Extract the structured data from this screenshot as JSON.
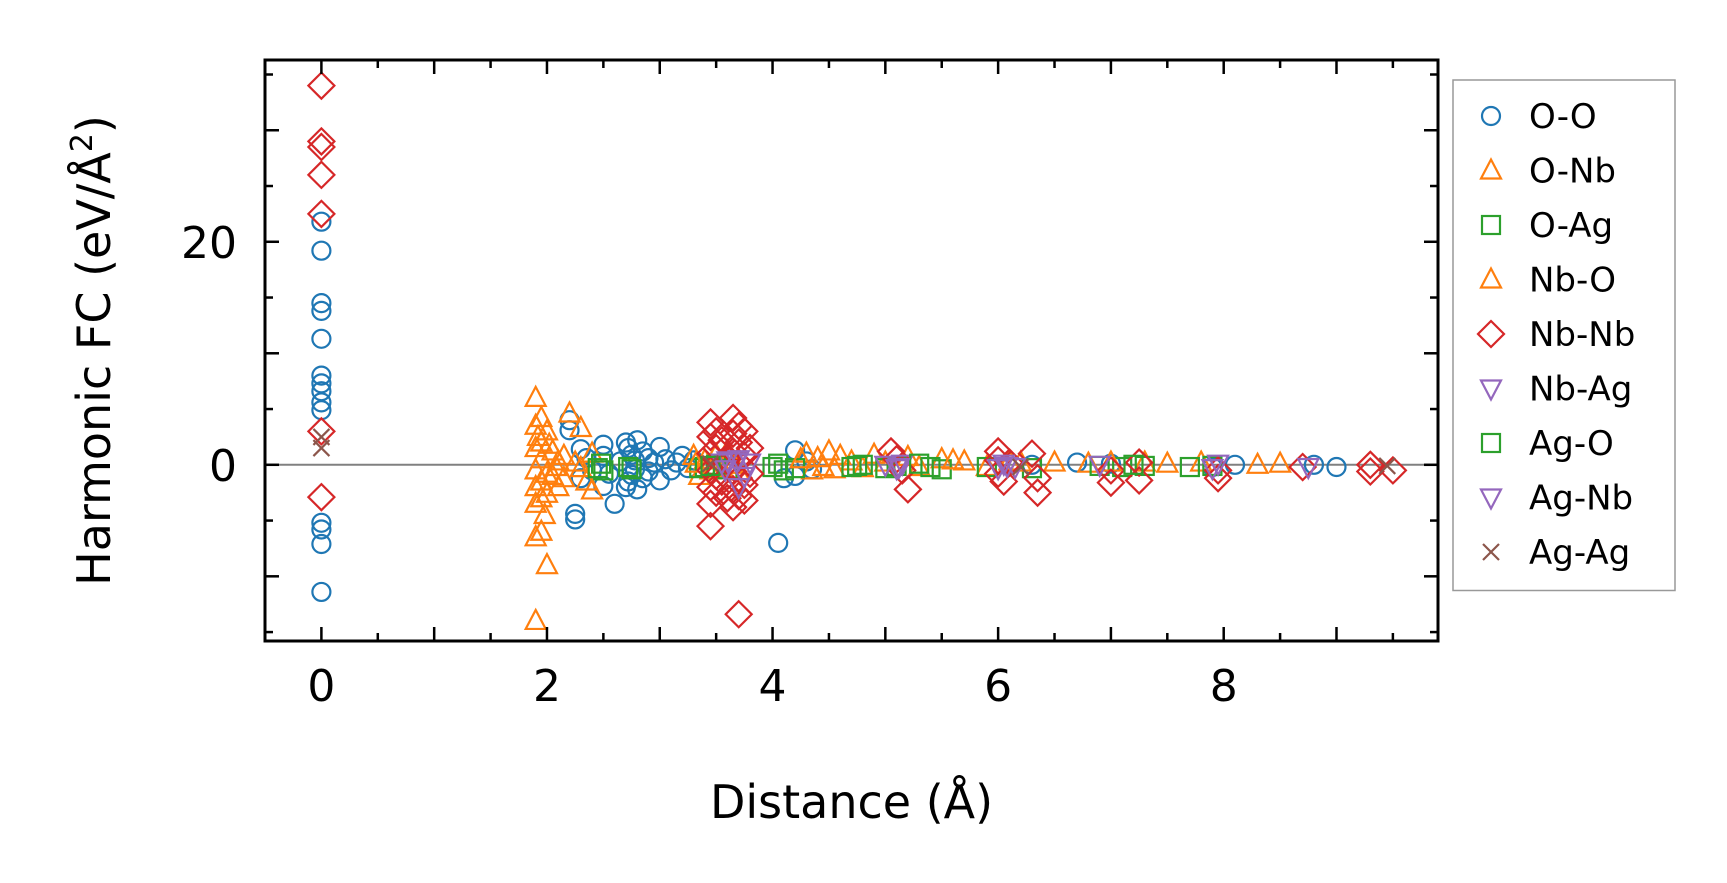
{
  "chart_data": {
    "type": "scatter",
    "xlabel": "Distance (Å)",
    "ylabel": "Harmonic FC (eV/Å²)",
    "ylabel_parts": {
      "base": "Harmonic FC (eV/Å",
      "sup": "2",
      "close": ")"
    },
    "xlim": [
      -0.5,
      9.9
    ],
    "ylim": [
      -15.8,
      36.3
    ],
    "xticks": [
      0,
      2,
      4,
      6,
      8
    ],
    "yticks": [
      0,
      20
    ],
    "x_minor_step": 0.5,
    "y_minor_step": 5,
    "zero_line": true,
    "grid": false,
    "legend_position": "outside-right",
    "series": [
      {
        "name": "O-O",
        "marker": "circle",
        "color": "#1f77b4",
        "points": [
          [
            0,
            21.8
          ],
          [
            0,
            19.2
          ],
          [
            0,
            14.5
          ],
          [
            0,
            13.8
          ],
          [
            0,
            11.3
          ],
          [
            0,
            8.0
          ],
          [
            0,
            7.3
          ],
          [
            0,
            6.6
          ],
          [
            0,
            5.6
          ],
          [
            0,
            4.9
          ],
          [
            0,
            -5.2
          ],
          [
            0,
            -5.8
          ],
          [
            0,
            -7.1
          ],
          [
            0,
            -11.4
          ],
          [
            2.2,
            4.0
          ],
          [
            2.2,
            3.1
          ],
          [
            2.25,
            -4.4
          ],
          [
            2.25,
            -4.9
          ],
          [
            2.3,
            1.4
          ],
          [
            2.3,
            -1.2
          ],
          [
            2.35,
            0.6
          ],
          [
            2.4,
            -0.5
          ],
          [
            2.5,
            1.8
          ],
          [
            2.5,
            -1.9
          ],
          [
            2.5,
            0.8
          ],
          [
            2.55,
            -0.8
          ],
          [
            2.6,
            -3.5
          ],
          [
            2.65,
            0.3
          ],
          [
            2.7,
            2.0
          ],
          [
            2.7,
            -2.0
          ],
          [
            2.72,
            1.5
          ],
          [
            2.72,
            -1.5
          ],
          [
            2.75,
            0.9
          ],
          [
            2.75,
            -0.9
          ],
          [
            2.78,
            0.4
          ],
          [
            2.78,
            -0.4
          ],
          [
            2.8,
            2.2
          ],
          [
            2.8,
            -2.2
          ],
          [
            2.85,
            1.2
          ],
          [
            2.85,
            -1.2
          ],
          [
            2.9,
            0.6
          ],
          [
            2.9,
            -0.6
          ],
          [
            2.95,
            0.2
          ],
          [
            3.0,
            1.6
          ],
          [
            3.0,
            -1.4
          ],
          [
            3.05,
            0.5
          ],
          [
            3.1,
            -0.5
          ],
          [
            3.15,
            0.2
          ],
          [
            3.2,
            0.8
          ],
          [
            3.25,
            -0.3
          ],
          [
            3.3,
            0.4
          ],
          [
            4.05,
            -7.0
          ],
          [
            4.1,
            -1.2
          ],
          [
            4.2,
            1.3
          ],
          [
            4.2,
            -1.0
          ],
          [
            4.3,
            0.3
          ],
          [
            4.35,
            -0.4
          ],
          [
            6.3,
            0.0
          ],
          [
            6.7,
            0.2
          ],
          [
            7.0,
            0.1
          ],
          [
            7.9,
            -0.2
          ],
          [
            8.1,
            0.0
          ],
          [
            8.8,
            0.0
          ],
          [
            9.0,
            -0.2
          ]
        ]
      },
      {
        "name": "O-Nb",
        "marker": "triangle-up",
        "color": "#ff7f0e",
        "points": [
          [
            1.9,
            6.0
          ],
          [
            1.9,
            3.5
          ],
          [
            1.9,
            1.5
          ],
          [
            1.9,
            -0.5
          ],
          [
            1.9,
            -2.0
          ],
          [
            1.9,
            -3.5
          ],
          [
            1.9,
            -6.5
          ],
          [
            1.9,
            -14.0
          ],
          [
            1.95,
            4.2
          ],
          [
            1.95,
            2.0
          ],
          [
            1.95,
            0.5
          ],
          [
            1.95,
            -1.5
          ],
          [
            1.95,
            -3.0
          ],
          [
            1.95,
            -6.0
          ],
          [
            2.0,
            3.0
          ],
          [
            2.0,
            -0.8
          ],
          [
            2.0,
            -2.6
          ],
          [
            2.0,
            -9.0
          ],
          [
            2.05,
            1.2
          ],
          [
            2.05,
            -1.0
          ],
          [
            2.1,
            0.3
          ],
          [
            2.1,
            -2.0
          ],
          [
            2.15,
            0.8
          ],
          [
            2.15,
            -1.2
          ],
          [
            2.2,
            4.6
          ],
          [
            2.25,
            0.2
          ],
          [
            2.3,
            -0.3
          ],
          [
            2.3,
            3.3
          ],
          [
            2.35,
            -1.5
          ],
          [
            2.4,
            1.0
          ],
          [
            2.4,
            -2.3
          ],
          [
            3.3,
            0.8
          ],
          [
            3.35,
            -1.0
          ],
          [
            3.4,
            0.4
          ],
          [
            3.45,
            -0.5
          ],
          [
            3.5,
            0.9
          ],
          [
            3.55,
            -0.3
          ],
          [
            3.6,
            1.2
          ],
          [
            3.65,
            0.0
          ],
          [
            3.7,
            -0.6
          ],
          [
            4.3,
            1.0
          ],
          [
            4.35,
            -0.5
          ],
          [
            4.4,
            0.6
          ],
          [
            4.5,
            1.2
          ],
          [
            4.55,
            -0.4
          ],
          [
            4.6,
            0.8
          ],
          [
            4.7,
            0.3
          ],
          [
            4.8,
            -0.3
          ],
          [
            4.9,
            0.9
          ],
          [
            5.0,
            0.2
          ],
          [
            5.2,
            0.7
          ],
          [
            5.3,
            -0.2
          ],
          [
            5.5,
            0.5
          ],
          [
            5.7,
            0.3
          ],
          [
            5.9,
            -0.2
          ],
          [
            6.1,
            0.3
          ],
          [
            6.5,
            0.2
          ],
          [
            6.8,
            0.1
          ],
          [
            7.3,
            0.2
          ],
          [
            7.5,
            0.1
          ],
          [
            7.8,
            0.2
          ],
          [
            8.3,
            0.0
          ],
          [
            8.5,
            0.1
          ]
        ]
      },
      {
        "name": "O-Ag",
        "marker": "square",
        "color": "#2ca02c",
        "points": [
          [
            2.45,
            -0.3
          ],
          [
            2.5,
            -0.5
          ],
          [
            2.75,
            -0.4
          ],
          [
            3.35,
            -0.3
          ],
          [
            3.4,
            -0.2
          ],
          [
            3.5,
            0.0
          ],
          [
            3.6,
            -0.4
          ],
          [
            4.0,
            -0.2
          ],
          [
            4.1,
            -0.5
          ],
          [
            4.2,
            -0.3
          ],
          [
            4.7,
            -0.2
          ],
          [
            4.8,
            0.0
          ],
          [
            5.0,
            -0.3
          ],
          [
            5.1,
            -0.1
          ],
          [
            5.4,
            -0.2
          ],
          [
            5.5,
            -0.4
          ],
          [
            5.9,
            -0.2
          ],
          [
            6.3,
            -0.3
          ],
          [
            6.9,
            -0.1
          ],
          [
            7.1,
            -0.2
          ],
          [
            7.3,
            -0.1
          ],
          [
            7.7,
            -0.2
          ],
          [
            7.9,
            -0.1
          ]
        ]
      },
      {
        "name": "Nb-O",
        "marker": "triangle-up",
        "color": "#ff7f0e",
        "points": [
          [
            1.92,
            2.5
          ],
          [
            1.98,
            -4.5
          ],
          [
            2.02,
            1.8
          ],
          [
            2.08,
            -0.2
          ],
          [
            3.32,
            0.1
          ],
          [
            4.25,
            0.5
          ],
          [
            4.45,
            -0.2
          ],
          [
            5.6,
            0.4
          ],
          [
            6.2,
            0.2
          ],
          [
            7.0,
            0.2
          ]
        ]
      },
      {
        "name": "Nb-Nb",
        "marker": "diamond",
        "color": "#d62728",
        "points": [
          [
            0,
            34.0
          ],
          [
            0,
            29.0
          ],
          [
            0,
            28.5
          ],
          [
            0,
            26.0
          ],
          [
            0,
            22.5
          ],
          [
            0,
            3.0
          ],
          [
            0,
            -2.9
          ],
          [
            3.45,
            3.8
          ],
          [
            3.45,
            2.5
          ],
          [
            3.45,
            1.0
          ],
          [
            3.45,
            -0.5
          ],
          [
            3.45,
            -2.0
          ],
          [
            3.45,
            -3.5
          ],
          [
            3.45,
            -5.5
          ],
          [
            3.5,
            3.0
          ],
          [
            3.5,
            1.5
          ],
          [
            3.5,
            -1.0
          ],
          [
            3.5,
            -2.5
          ],
          [
            3.55,
            2.2
          ],
          [
            3.55,
            -1.5
          ],
          [
            3.6,
            0.5
          ],
          [
            3.6,
            -3.0
          ],
          [
            3.65,
            4.2
          ],
          [
            3.65,
            2.8
          ],
          [
            3.65,
            1.2
          ],
          [
            3.65,
            -0.6
          ],
          [
            3.65,
            -2.2
          ],
          [
            3.65,
            -3.8
          ],
          [
            3.7,
            3.5
          ],
          [
            3.7,
            2.0
          ],
          [
            3.7,
            -1.2
          ],
          [
            3.7,
            -2.8
          ],
          [
            3.7,
            -13.4
          ],
          [
            3.75,
            3.0
          ],
          [
            3.75,
            0.8
          ],
          [
            3.75,
            -1.8
          ],
          [
            3.75,
            -3.2
          ],
          [
            3.8,
            1.5
          ],
          [
            3.8,
            -0.8
          ],
          [
            5.05,
            1.2
          ],
          [
            5.1,
            0.5
          ],
          [
            5.15,
            -0.5
          ],
          [
            5.2,
            -2.2
          ],
          [
            6.0,
            1.2
          ],
          [
            6.0,
            0.4
          ],
          [
            6.0,
            -0.8
          ],
          [
            6.05,
            -1.5
          ],
          [
            6.1,
            0.2
          ],
          [
            6.3,
            1.0
          ],
          [
            6.35,
            -1.2
          ],
          [
            6.35,
            -2.5
          ],
          [
            7.0,
            -0.5
          ],
          [
            7.0,
            -1.6
          ],
          [
            7.25,
            0.2
          ],
          [
            7.25,
            -1.4
          ],
          [
            7.95,
            -0.5
          ],
          [
            7.95,
            -1.2
          ],
          [
            8.7,
            -0.2
          ],
          [
            9.3,
            0.0
          ],
          [
            9.3,
            -0.6
          ],
          [
            9.5,
            -0.5
          ]
        ]
      },
      {
        "name": "Nb-Ag",
        "marker": "triangle-down",
        "color": "#9467bd",
        "points": [
          [
            3.55,
            0.2
          ],
          [
            3.6,
            0.4
          ],
          [
            3.7,
            0.5
          ],
          [
            3.7,
            -2.0
          ],
          [
            3.75,
            -1.0
          ],
          [
            3.8,
            0.2
          ],
          [
            5.0,
            0.0
          ],
          [
            5.1,
            -0.3
          ],
          [
            5.15,
            0.1
          ],
          [
            6.0,
            -0.3
          ],
          [
            6.05,
            0.1
          ],
          [
            6.15,
            -0.2
          ],
          [
            6.9,
            0.0
          ],
          [
            7.9,
            -0.3
          ],
          [
            8.75,
            -0.2
          ]
        ]
      },
      {
        "name": "Ag-O",
        "marker": "square",
        "color": "#2ca02c",
        "points": [
          [
            2.48,
            0.1
          ],
          [
            2.72,
            -0.2
          ],
          [
            3.45,
            -0.1
          ],
          [
            4.05,
            0.1
          ],
          [
            4.75,
            -0.1
          ],
          [
            5.3,
            0.1
          ],
          [
            7.2,
            0.0
          ]
        ]
      },
      {
        "name": "Ag-Nb",
        "marker": "triangle-down",
        "color": "#9467bd",
        "points": [
          [
            3.58,
            -0.4
          ],
          [
            3.68,
            0.3
          ],
          [
            5.12,
            -0.2
          ],
          [
            6.08,
            -0.1
          ],
          [
            7.95,
            0.1
          ]
        ]
      },
      {
        "name": "Ag-Ag",
        "marker": "x",
        "color": "#8c564b",
        "points": [
          [
            0,
            2.5
          ],
          [
            0,
            1.5
          ],
          [
            3.45,
            0.1
          ],
          [
            6.2,
            -0.2
          ],
          [
            9.45,
            -0.1
          ]
        ]
      }
    ]
  }
}
